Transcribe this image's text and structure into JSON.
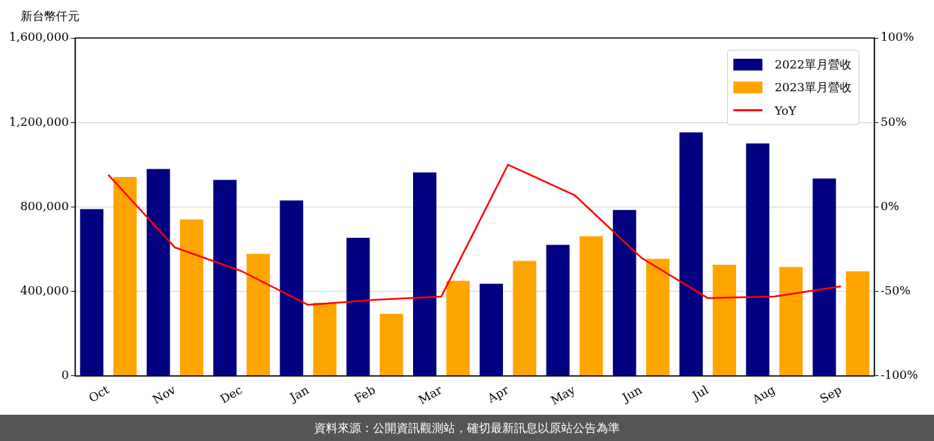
{
  "chart_data": {
    "type": "bar",
    "ylabel": "新台幣仟元",
    "categories": [
      "Oct",
      "Nov",
      "Dec",
      "Jan",
      "Feb",
      "Mar",
      "Apr",
      "May",
      "Jun",
      "Jul",
      "Aug",
      "Sep"
    ],
    "series": [
      {
        "name": "2022單月營收",
        "color": "#000080",
        "values": [
          790000,
          980000,
          928000,
          831000,
          654000,
          963000,
          436000,
          620000,
          786000,
          1153000,
          1101000,
          935000
        ]
      },
      {
        "name": "2023單月營收",
        "color": "#ffa500",
        "values": [
          942000,
          741000,
          578000,
          346000,
          294000,
          450000,
          544000,
          661000,
          554000,
          526000,
          516000,
          495000
        ]
      },
      {
        "name": "YoY",
        "type": "line",
        "axis": "y2",
        "color": "#ff0000",
        "values": [
          19,
          -24,
          -38,
          -58,
          -55,
          -53,
          25,
          7,
          -30,
          -54,
          -53,
          -47
        ]
      }
    ],
    "ylim": [
      0,
      1600000
    ],
    "yticks": [
      0,
      {
        "value": 400000,
        "label": "400,000"
      },
      {
        "value": 800000,
        "label": "800,000"
      },
      {
        "value": 1200000,
        "label": "1,200,000"
      },
      {
        "value": 1600000,
        "label": "1,600,000"
      }
    ],
    "y2lim": [
      -100,
      100
    ],
    "y2ticks": [
      {
        "value": -100,
        "label": "-100%"
      },
      {
        "value": -50,
        "label": "-50%"
      },
      {
        "value": 0,
        "label": "0%"
      },
      {
        "value": 50,
        "label": "50%"
      },
      {
        "value": 100,
        "label": "100%"
      }
    ],
    "grid": "y",
    "legend": "top right",
    "marker": "none",
    "line_style": "solid",
    "annotations": [
      "資料來源：公開資訊觀測站，確切最新訊息以原站公告為準"
    ]
  }
}
